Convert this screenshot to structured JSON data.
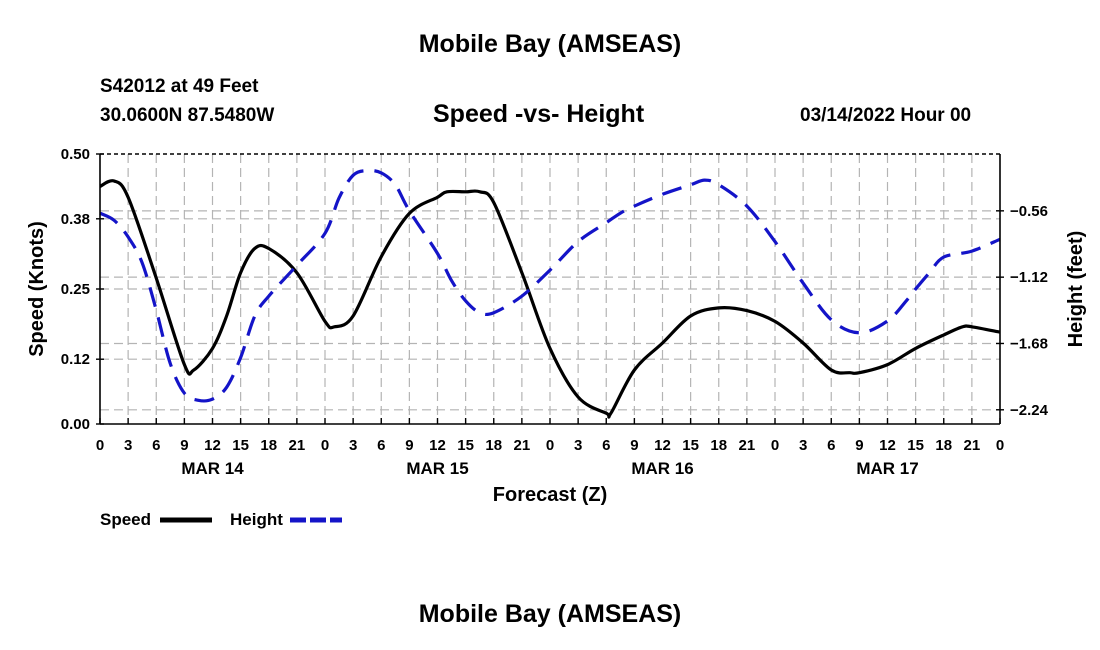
{
  "header": {
    "title": "Mobile Bay (AMSEAS)",
    "station": "S42012 at 49 Feet",
    "coords": "30.0600N  87.5480W",
    "subtitle": "Speed -vs- Height",
    "date": "03/14/2022 Hour 00"
  },
  "footer": {
    "title": "Mobile Bay (AMSEAS)"
  },
  "colors": {
    "speed": "#000000",
    "height": "#1414c8",
    "grid": "#b4b4b4"
  },
  "chart_data": {
    "type": "line",
    "title": "Speed -vs- Height",
    "xlabel": "Forecast (Z)",
    "ylabel": "Speed (Knots)",
    "y2label": "Height (feet)",
    "xlim": [
      0,
      96
    ],
    "ylim": [
      0,
      0.5
    ],
    "y2lim": [
      -2.36,
      -0.08
    ],
    "x_ticks": [
      0,
      3,
      6,
      9,
      12,
      15,
      18,
      21,
      24,
      27,
      30,
      33,
      36,
      39,
      42,
      45,
      48,
      51,
      54,
      57,
      60,
      63,
      66,
      69,
      72,
      75,
      78,
      81,
      84,
      87,
      90,
      93,
      96
    ],
    "x_tick_labels": [
      "0",
      "3",
      "6",
      "9",
      "12",
      "15",
      "18",
      "21",
      "0",
      "3",
      "6",
      "9",
      "12",
      "15",
      "18",
      "21",
      "0",
      "3",
      "6",
      "9",
      "12",
      "15",
      "18",
      "21",
      "0",
      "3",
      "6",
      "9",
      "12",
      "15",
      "18",
      "21",
      "0"
    ],
    "day_labels": [
      {
        "x": 12,
        "label": "MAR 14"
      },
      {
        "x": 36,
        "label": "MAR 15"
      },
      {
        "x": 60,
        "label": "MAR 16"
      },
      {
        "x": 84,
        "label": "MAR 17"
      }
    ],
    "y_ticks": [
      0.0,
      0.12,
      0.25,
      0.38,
      0.5
    ],
    "y_tick_labels": [
      "0.00",
      "0.12",
      "0.25",
      "0.38",
      "0.50"
    ],
    "y2_ticks": [
      -2.24,
      -1.68,
      -1.12,
      -0.56
    ],
    "y2_tick_labels": [
      "−2.24",
      "−1.68",
      "−1.12",
      "−0.56"
    ],
    "grid": true,
    "series": [
      {
        "name": "Speed",
        "axis": "left",
        "style": "solid",
        "x": [
          0,
          1.5,
          3,
          6,
          9,
          10,
          12,
          13.5,
          15,
          16.5,
          18,
          21,
          24,
          25,
          27,
          30,
          33,
          36,
          37,
          39,
          40.5,
          42,
          45,
          48,
          51,
          54,
          54.5,
          57,
          60,
          63,
          66,
          69,
          72,
          75,
          78,
          80,
          81,
          84,
          87,
          90,
          92,
          93,
          96
        ],
        "values": [
          0.44,
          0.45,
          0.42,
          0.27,
          0.11,
          0.1,
          0.14,
          0.2,
          0.28,
          0.325,
          0.325,
          0.28,
          0.19,
          0.18,
          0.2,
          0.31,
          0.39,
          0.42,
          0.43,
          0.43,
          0.43,
          0.41,
          0.28,
          0.14,
          0.05,
          0.02,
          0.02,
          0.1,
          0.15,
          0.2,
          0.215,
          0.21,
          0.19,
          0.15,
          0.1,
          0.095,
          0.095,
          0.11,
          0.14,
          0.165,
          0.18,
          0.18,
          0.17
        ]
      },
      {
        "name": "Height",
        "axis": "right",
        "style": "dashed",
        "x": [
          0,
          1.5,
          3,
          4.5,
          6,
          7.5,
          9,
          10.5,
          12,
          13.5,
          15,
          16.5,
          18,
          21,
          24,
          25.5,
          27,
          28.5,
          30,
          31.5,
          33,
          36,
          37.5,
          39,
          40.5,
          42,
          45,
          48,
          51,
          54,
          55.5,
          57,
          60,
          63,
          64.5,
          66,
          69,
          72,
          75,
          78,
          81,
          84,
          86,
          87,
          88.5,
          90,
          93,
          96
        ],
        "values": [
          -0.58,
          -0.64,
          -0.78,
          -1.0,
          -1.4,
          -1.85,
          -2.1,
          -2.16,
          -2.15,
          -2.05,
          -1.8,
          -1.45,
          -1.28,
          -1.02,
          -0.75,
          -0.45,
          -0.26,
          -0.22,
          -0.24,
          -0.34,
          -0.56,
          -0.92,
          -1.15,
          -1.32,
          -1.42,
          -1.42,
          -1.28,
          -1.06,
          -0.82,
          -0.66,
          -0.58,
          -0.52,
          -0.42,
          -0.34,
          -0.3,
          -0.34,
          -0.52,
          -0.82,
          -1.17,
          -1.48,
          -1.59,
          -1.49,
          -1.32,
          -1.22,
          -1.08,
          -0.95,
          -0.9,
          -0.8
        ]
      }
    ],
    "legend": [
      {
        "label": "Speed",
        "style": "solid"
      },
      {
        "label": "Height",
        "style": "dashed"
      }
    ]
  }
}
